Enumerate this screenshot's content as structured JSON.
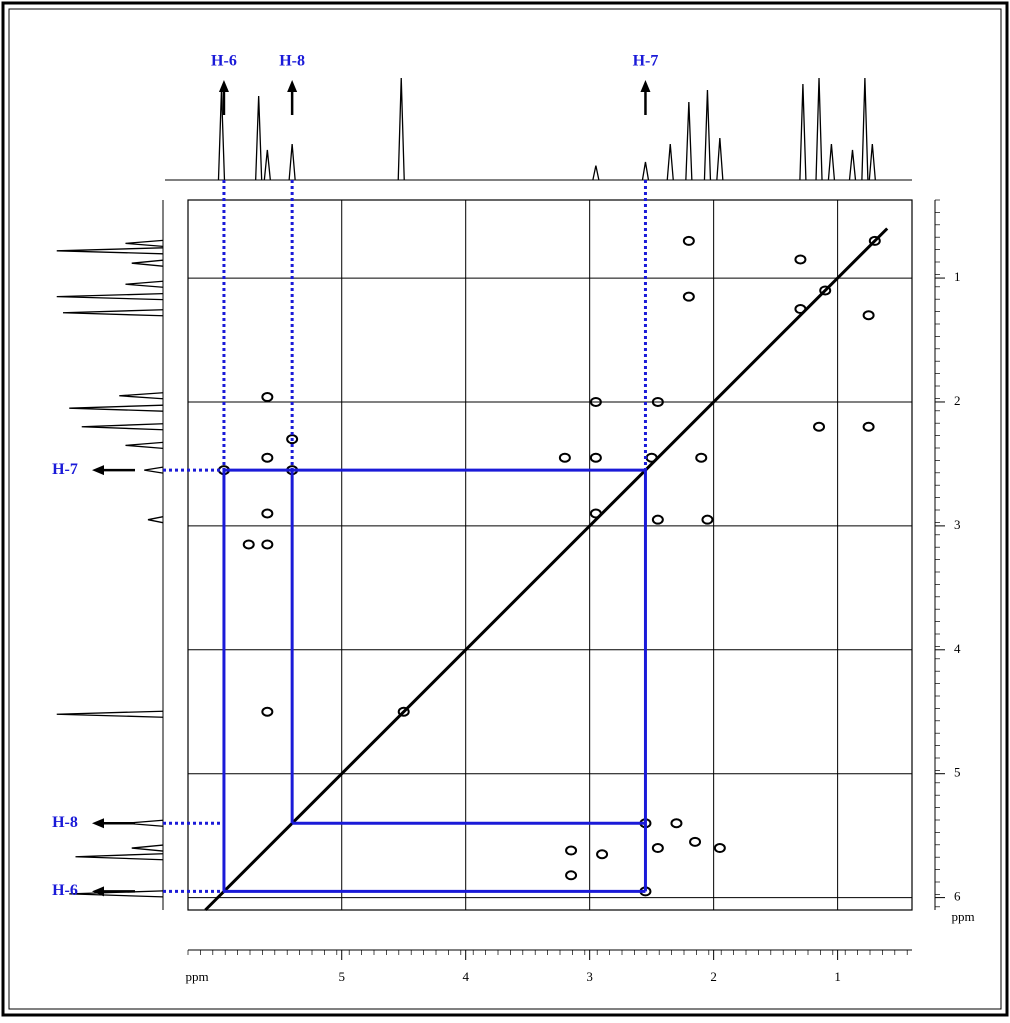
{
  "chart_data": {
    "type": "cosy",
    "xlim": [
      6.24,
      0.4
    ],
    "ylim": [
      0.37,
      6.1
    ],
    "xticks": [
      5,
      4,
      3,
      2,
      1
    ],
    "yticks": [
      1,
      2,
      3,
      4,
      5,
      6
    ],
    "x_label": "ppm",
    "y_label": "ppm",
    "grid": true,
    "annotations": [
      {
        "label": "H-6",
        "shift": 5.95
      },
      {
        "label": "H-8",
        "shift": 5.4
      },
      {
        "label": "H-7",
        "shift": 2.55
      }
    ],
    "annotation_color": "#1a1ad8",
    "spectrum": {
      "shifts": [
        5.97,
        5.67,
        5.6,
        5.4,
        4.52,
        2.95,
        2.55,
        2.35,
        2.2,
        2.05,
        1.95,
        1.28,
        1.15,
        1.05,
        0.88,
        0.78,
        0.72
      ],
      "heights": [
        0.75,
        0.7,
        0.25,
        0.3,
        0.85,
        0.12,
        0.15,
        0.3,
        0.65,
        0.75,
        0.35,
        0.8,
        0.85,
        0.3,
        0.25,
        0.85,
        0.3
      ]
    },
    "cross_peaks": {
      "x": [
        5.6,
        5.6,
        5.4,
        5.4,
        5.95,
        5.6,
        5.75,
        5.6,
        5.6,
        2.55,
        2.55,
        2.3,
        2.45,
        2.9,
        3.15,
        3.15,
        1.95,
        2.15,
        2.95,
        2.95,
        2.95,
        2.45,
        2.05,
        2.45,
        2.2,
        2.2,
        1.15,
        0.75,
        0.75,
        1.3,
        2.5,
        2.1,
        3.2,
        4.5,
        1.1,
        1.3,
        0.7
      ],
      "y": [
        1.96,
        2.45,
        2.3,
        2.55,
        2.55,
        2.9,
        3.15,
        3.15,
        4.5,
        5.4,
        5.95,
        5.4,
        5.6,
        5.65,
        5.62,
        5.82,
        5.6,
        5.55,
        2.0,
        2.45,
        2.9,
        2.95,
        2.95,
        2.0,
        0.7,
        1.15,
        2.2,
        2.2,
        1.3,
        0.85,
        2.45,
        2.45,
        2.45,
        4.5,
        1.1,
        1.25,
        0.7
      ]
    }
  }
}
